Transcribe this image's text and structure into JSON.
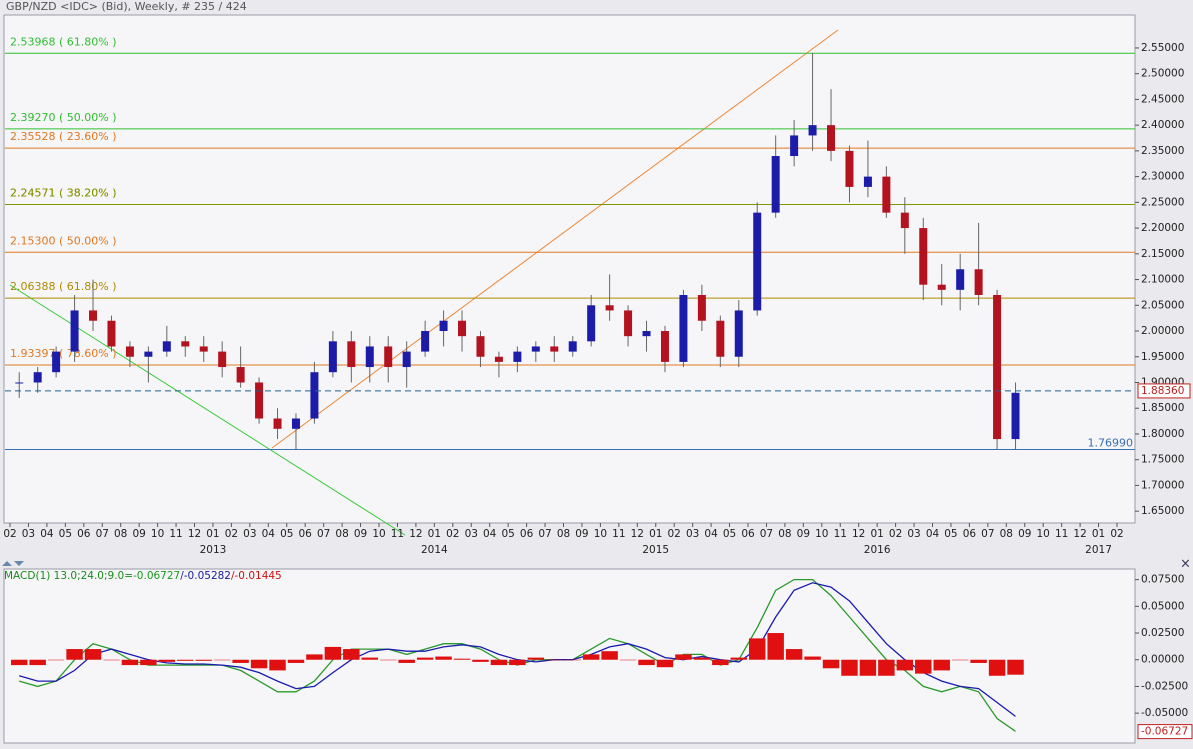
{
  "chart_data": [
    {
      "type": "candlestick",
      "title": "GBP/NZD <IDC> (Bid), Weekly, # 235 / 424",
      "categories": [
        "02",
        "03",
        "04",
        "05",
        "06",
        "07",
        "08",
        "09",
        "10",
        "11",
        "12",
        "01",
        "02",
        "03",
        "04",
        "05",
        "06",
        "07",
        "08",
        "09",
        "10",
        "11",
        "12",
        "01",
        "02",
        "03",
        "04",
        "05",
        "06",
        "07",
        "08",
        "09",
        "10",
        "11",
        "12",
        "01",
        "02",
        "03",
        "04",
        "05",
        "06",
        "07",
        "08",
        "09",
        "10",
        "11",
        "12",
        "01",
        "02",
        "03",
        "04",
        "05",
        "06",
        "07",
        "08",
        "09",
        "10",
        "11",
        "12",
        "01",
        "02"
      ],
      "years": [
        {
          "label": "2013",
          "index": 11
        },
        {
          "label": "2014",
          "index": 23
        },
        {
          "label": "2015",
          "index": 35
        },
        {
          "label": "2016",
          "index": 47
        },
        {
          "label": "2017",
          "index": 59
        }
      ],
      "open": [
        1.9,
        1.9,
        1.92,
        1.96,
        2.04,
        2.02,
        1.97,
        1.95,
        1.96,
        1.98,
        1.97,
        1.96,
        1.93,
        1.9,
        1.83,
        1.81,
        1.83,
        1.92,
        1.98,
        1.93,
        1.97,
        1.93,
        1.96,
        2.0,
        2.02,
        1.99,
        1.95,
        1.94,
        1.96,
        1.97,
        1.96,
        1.98,
        2.05,
        2.04,
        1.99,
        2.0,
        1.94,
        2.07,
        2.02,
        1.95,
        2.04,
        2.23,
        2.34,
        2.38,
        2.4,
        2.35,
        2.28,
        2.3,
        2.23,
        2.2,
        2.09,
        2.08,
        2.12,
        2.07,
        1.79,
        null,
        null,
        null,
        null,
        null,
        null
      ],
      "high": [
        1.92,
        1.93,
        1.97,
        2.07,
        2.1,
        2.03,
        1.98,
        1.97,
        2.01,
        1.99,
        1.99,
        1.98,
        1.97,
        1.91,
        1.85,
        1.84,
        1.94,
        2.0,
        2.0,
        1.99,
        1.99,
        1.98,
        2.02,
        2.04,
        2.04,
        2.0,
        1.96,
        1.97,
        1.98,
        1.99,
        1.99,
        2.07,
        2.11,
        2.05,
        2.02,
        2.01,
        2.08,
        2.09,
        2.03,
        2.06,
        2.25,
        2.38,
        2.41,
        2.54,
        2.47,
        2.36,
        2.37,
        2.32,
        2.26,
        2.22,
        2.13,
        2.15,
        2.21,
        2.08,
        1.9,
        null,
        null,
        null,
        null,
        null,
        null
      ],
      "low": [
        1.87,
        1.88,
        1.91,
        1.94,
        2.0,
        1.96,
        1.93,
        1.9,
        1.95,
        1.95,
        1.94,
        1.91,
        1.89,
        1.82,
        1.79,
        1.77,
        1.82,
        1.91,
        1.9,
        1.9,
        1.9,
        1.89,
        1.95,
        1.97,
        1.96,
        1.93,
        1.91,
        1.92,
        1.94,
        1.94,
        1.95,
        1.97,
        2.02,
        1.97,
        1.96,
        1.92,
        1.93,
        2.0,
        1.93,
        1.93,
        2.03,
        2.22,
        2.32,
        2.35,
        2.33,
        2.25,
        2.26,
        2.22,
        2.15,
        2.06,
        2.05,
        2.04,
        2.05,
        1.77,
        1.77,
        null,
        null,
        null,
        null,
        null,
        null
      ],
      "close": [
        1.9,
        1.92,
        1.96,
        2.04,
        2.02,
        1.97,
        1.95,
        1.96,
        1.98,
        1.97,
        1.96,
        1.93,
        1.9,
        1.83,
        1.81,
        1.83,
        1.92,
        1.98,
        1.93,
        1.97,
        1.93,
        1.96,
        2.0,
        2.02,
        1.99,
        1.95,
        1.94,
        1.96,
        1.97,
        1.96,
        1.98,
        2.05,
        2.04,
        1.99,
        2.0,
        1.94,
        2.07,
        2.02,
        1.95,
        2.04,
        2.23,
        2.34,
        2.38,
        2.4,
        2.35,
        2.28,
        2.3,
        2.23,
        2.2,
        2.09,
        2.08,
        2.12,
        2.07,
        1.79,
        1.88,
        null,
        null,
        null,
        null,
        null,
        null
      ],
      "up_color": "#1c1ca8",
      "down_color": "#b3121f",
      "ylim": [
        1.627,
        2.614
      ],
      "yticks": [
        {
          "value": 1.65,
          "label": "1.65000"
        },
        {
          "value": 1.7,
          "label": "1.70000"
        },
        {
          "value": 1.75,
          "label": "1.75000"
        },
        {
          "value": 1.8,
          "label": "1.80000"
        },
        {
          "value": 1.85,
          "label": "1.85000"
        },
        {
          "value": 1.9,
          "label": "1.90000"
        },
        {
          "value": 1.95,
          "label": "1.95000"
        },
        {
          "value": 2.0,
          "label": "2.00000"
        },
        {
          "value": 2.05,
          "label": "2.05000"
        },
        {
          "value": 2.1,
          "label": "2.10000"
        },
        {
          "value": 2.15,
          "label": "2.15000"
        },
        {
          "value": 2.2,
          "label": "2.20000"
        },
        {
          "value": 2.25,
          "label": "2.25000"
        },
        {
          "value": 2.3,
          "label": "2.30000"
        },
        {
          "value": 2.35,
          "label": "2.35000"
        },
        {
          "value": 2.4,
          "label": "2.40000"
        },
        {
          "value": 2.45,
          "label": "2.45000"
        },
        {
          "value": 2.5,
          "label": "2.50000"
        },
        {
          "value": 2.55,
          "label": "2.55000"
        }
      ],
      "levels": [
        {
          "label": "2.53968 ( 61.80% )",
          "value": 2.53968,
          "color": "#2fbf2f"
        },
        {
          "label": "2.39270 ( 50.00% )",
          "value": 2.3927,
          "color": "#2fbf2f"
        },
        {
          "label": "2.35528 ( 23.60% )",
          "value": 2.35528,
          "color": "#e07820"
        },
        {
          "label": "2.24571 ( 38.20% )",
          "value": 2.24571,
          "color": "#e07820"
        },
        {
          "label": "2.24571 ( 38.20% )",
          "value": 2.24571,
          "color": "#7a9a00"
        },
        {
          "label": "2.15300 ( 50.00% )",
          "value": 2.153,
          "color": "#e07820"
        },
        {
          "label": "2.06388 ( 61.80% )",
          "value": 2.06388,
          "color": "#b08a00"
        },
        {
          "label": "1.93397 ( 78.60% )",
          "value": 1.93397,
          "color": "#e07820"
        }
      ],
      "support": {
        "value": 1.7699,
        "label": "1.76990",
        "color": "#3a6fb0"
      },
      "last": {
        "value": 1.8836,
        "label": "1.88360",
        "color": "#1f5f8f"
      }
    },
    {
      "type": "macd",
      "title": "MACD(1) 13.0;24.0;9.0=",
      "title_values": [
        {
          "text": "-0.06727",
          "color": "#1a9a1a"
        },
        {
          "text": "/-0.05282",
          "color": "#1a1aa0"
        },
        {
          "text": "/-0.01445",
          "color": "#d01010"
        }
      ],
      "series": [
        {
          "name": "MACD",
          "color": "#2a9a2a",
          "values": [
            -0.02,
            -0.025,
            -0.02,
            0.0,
            0.015,
            0.01,
            0.0,
            -0.005,
            -0.005,
            -0.005,
            -0.005,
            -0.005,
            -0.01,
            -0.02,
            -0.03,
            -0.03,
            -0.02,
            0.0,
            0.01,
            0.01,
            0.01,
            0.005,
            0.01,
            0.015,
            0.015,
            0.01,
            0.0,
            -0.005,
            0.0,
            0.0,
            0.0,
            0.01,
            0.02,
            0.015,
            0.005,
            -0.005,
            0.005,
            0.005,
            -0.005,
            0.0,
            0.03,
            0.065,
            0.075,
            0.075,
            0.06,
            0.04,
            0.02,
            0.0,
            -0.01,
            -0.025,
            -0.03,
            -0.025,
            -0.03,
            -0.055,
            -0.067,
            null,
            null,
            null,
            null,
            null,
            null
          ]
        },
        {
          "name": "Signal",
          "color": "#1a1ab0",
          "values": [
            -0.015,
            -0.02,
            -0.02,
            -0.01,
            0.005,
            0.01,
            0.005,
            0.0,
            -0.003,
            -0.004,
            -0.004,
            -0.005,
            -0.007,
            -0.012,
            -0.02,
            -0.027,
            -0.025,
            -0.012,
            0.0,
            0.008,
            0.01,
            0.008,
            0.008,
            0.012,
            0.014,
            0.012,
            0.005,
            0.0,
            -0.002,
            0.0,
            0.0,
            0.005,
            0.012,
            0.015,
            0.01,
            0.002,
            0.0,
            0.003,
            0.0,
            -0.002,
            0.01,
            0.04,
            0.065,
            0.072,
            0.068,
            0.055,
            0.035,
            0.015,
            0.0,
            -0.012,
            -0.02,
            -0.025,
            -0.027,
            -0.04,
            -0.053,
            null,
            null,
            null,
            null,
            null,
            null
          ]
        },
        {
          "name": "Histogram",
          "color": "#e01010",
          "values": [
            -0.005,
            -0.005,
            0.0,
            0.01,
            0.01,
            0.0,
            -0.005,
            -0.005,
            -0.002,
            -0.001,
            -0.001,
            0.0,
            -0.003,
            -0.008,
            -0.01,
            -0.003,
            0.005,
            0.012,
            0.01,
            0.002,
            0.0,
            -0.003,
            0.002,
            0.003,
            0.001,
            -0.002,
            -0.005,
            -0.005,
            0.002,
            0.0,
            0.0,
            0.005,
            0.008,
            0.0,
            -0.005,
            -0.007,
            0.005,
            0.002,
            -0.005,
            0.002,
            0.02,
            0.025,
            0.01,
            0.003,
            -0.008,
            -0.015,
            -0.015,
            -0.015,
            -0.01,
            -0.013,
            -0.01,
            0.0,
            -0.003,
            -0.015,
            -0.014,
            null,
            null,
            null,
            null,
            null,
            null
          ]
        }
      ],
      "ylim": [
        -0.077,
        0.084
      ],
      "yticks": [
        {
          "value": 0.075,
          "label": "0.07500"
        },
        {
          "value": 0.05,
          "label": "0.05000"
        },
        {
          "value": 0.025,
          "label": "0.02500"
        },
        {
          "value": 0,
          "label": "0.00000"
        },
        {
          "value": -0.025,
          "label": "-0.02500"
        },
        {
          "value": -0.05,
          "label": "-0.05000"
        }
      ],
      "last": {
        "value": -0.06727,
        "label": "-0.06727"
      }
    }
  ]
}
